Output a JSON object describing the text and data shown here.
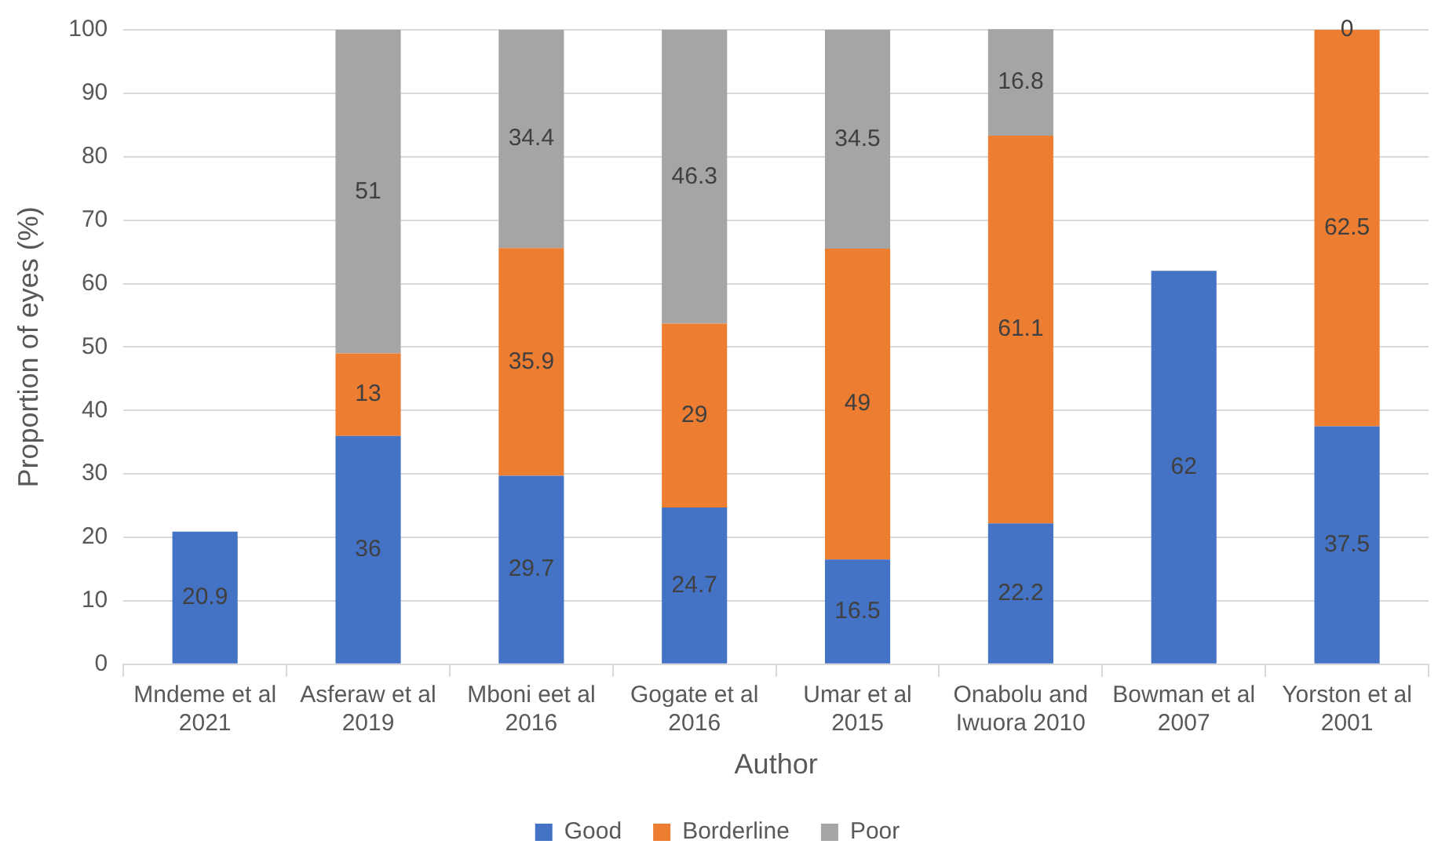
{
  "chart_data": {
    "type": "bar",
    "stacked": true,
    "xlabel": "Author",
    "ylabel": "Proportion of eyes (%)",
    "categories": [
      "Mndeme et al 2021",
      "Asferaw et al 2019",
      "Mboni eet al 2016",
      "Gogate et al 2016",
      "Umar et al 2015",
      "Onabolu and Iwuora 2010",
      "Bowman et al 2007",
      "Yorston et al 2001"
    ],
    "series": [
      {
        "name": "Good",
        "color": "#4472c4",
        "values": [
          20.9,
          36,
          29.7,
          24.7,
          16.5,
          22.2,
          62,
          37.5
        ]
      },
      {
        "name": "Borderline",
        "color": "#ed7d31",
        "values": [
          null,
          13,
          35.9,
          29,
          49,
          61.1,
          null,
          62.5
        ]
      },
      {
        "name": "Poor",
        "color": "#a5a5a5",
        "values": [
          null,
          51,
          34.4,
          46.3,
          34.5,
          16.8,
          null,
          0
        ]
      }
    ],
    "ylim": [
      0,
      100
    ],
    "yticks": [
      0,
      10,
      20,
      30,
      40,
      50,
      60,
      70,
      80,
      90,
      100
    ],
    "grid": "y",
    "legend": "bottom",
    "data_labels": true
  }
}
